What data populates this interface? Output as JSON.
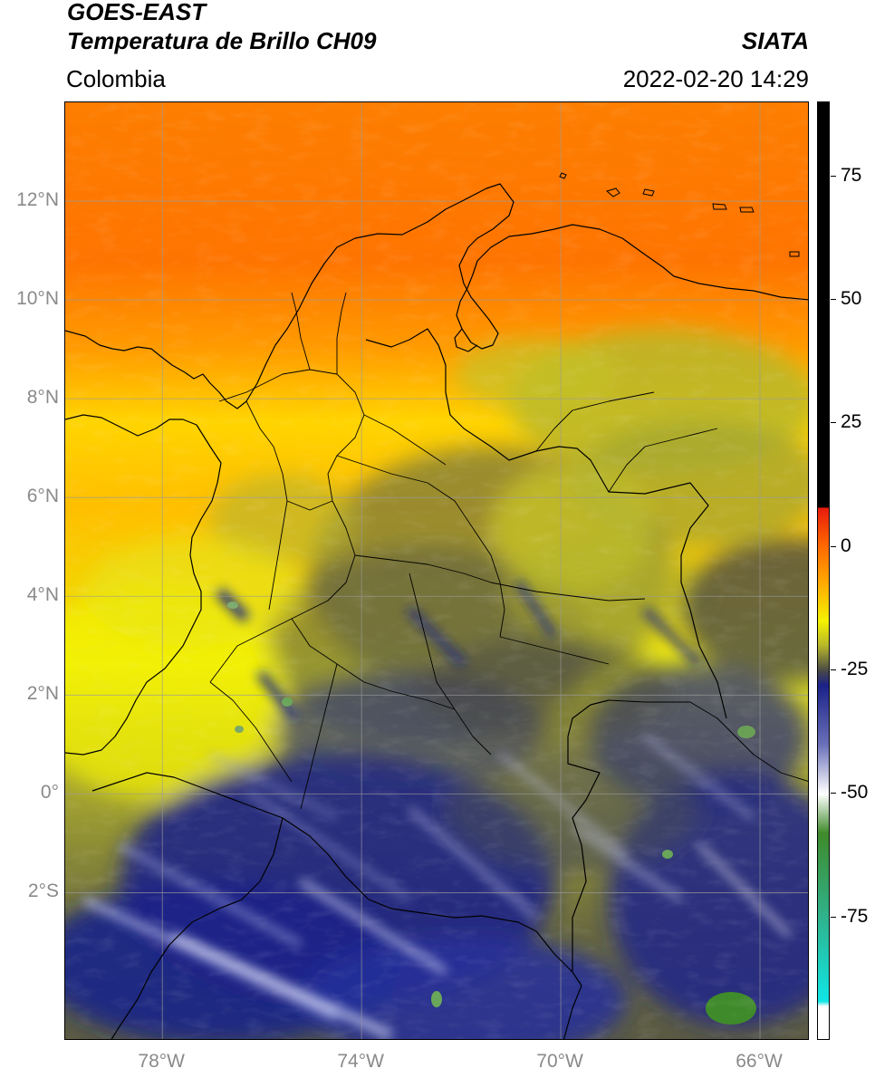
{
  "header": {
    "title_line1": "GOES-EAST",
    "title_line2": "Temperatura de Brillo CH09",
    "organization": "SIATA",
    "region": "Colombia",
    "timestamp": "2022-02-20 14:29"
  },
  "map": {
    "lat_labels": [
      {
        "lat": 12,
        "text": "12°N"
      },
      {
        "lat": 10,
        "text": "10°N"
      },
      {
        "lat": 8,
        "text": "8°N"
      },
      {
        "lat": 6,
        "text": "6°N"
      },
      {
        "lat": 4,
        "text": "4°N"
      },
      {
        "lat": 2,
        "text": "2°N"
      },
      {
        "lat": 0,
        "text": "0°"
      },
      {
        "lat": -2,
        "text": "2°S"
      }
    ],
    "lon_labels": [
      {
        "lon": -78,
        "text": "78°W"
      },
      {
        "lon": -74,
        "text": "74°W"
      },
      {
        "lon": -70,
        "text": "70°W"
      },
      {
        "lon": -66,
        "text": "66°W"
      }
    ],
    "lon_range": [
      -79.95,
      -65.0
    ],
    "lat_range": [
      -5.0,
      14.0
    ]
  },
  "colorbar": {
    "range": [
      -100,
      90
    ],
    "ticks": [
      {
        "value": 75,
        "text": "75"
      },
      {
        "value": 50,
        "text": "50"
      },
      {
        "value": 25,
        "text": "25"
      },
      {
        "value": 0,
        "text": "0"
      },
      {
        "value": -25,
        "text": "-25"
      },
      {
        "value": -50,
        "text": "-50"
      },
      {
        "value": -75,
        "text": "-75"
      }
    ],
    "stops": [
      {
        "value": 90,
        "color": "#000000"
      },
      {
        "value": 8,
        "color": "#000000"
      },
      {
        "value": 7.9,
        "color": "#e81b0c"
      },
      {
        "value": 0,
        "color": "#ff6a00"
      },
      {
        "value": -8,
        "color": "#ffb000"
      },
      {
        "value": -15,
        "color": "#f5f200"
      },
      {
        "value": -20,
        "color": "#b7b62a"
      },
      {
        "value": -25,
        "color": "#4a4a46"
      },
      {
        "value": -28,
        "color": "#1b2288"
      },
      {
        "value": -40,
        "color": "#6a70b8"
      },
      {
        "value": -50,
        "color": "#ffffff"
      },
      {
        "value": -58,
        "color": "#3f8a2a"
      },
      {
        "value": -75,
        "color": "#2fb38c"
      },
      {
        "value": -92,
        "color": "#10e6e6"
      },
      {
        "value": -93,
        "color": "#ffffff"
      },
      {
        "value": -100,
        "color": "#ffffff"
      }
    ]
  }
}
